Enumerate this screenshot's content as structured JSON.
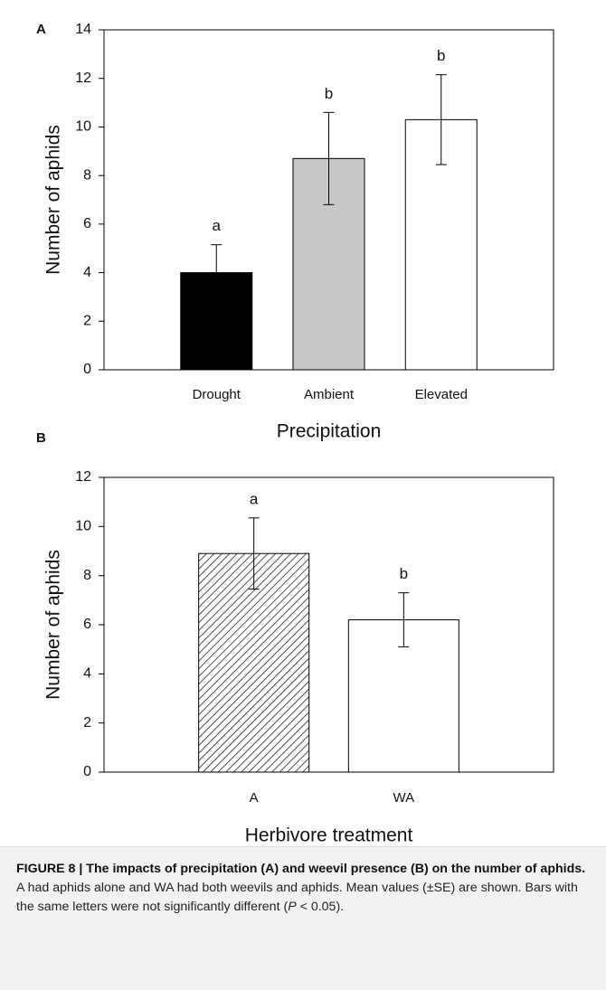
{
  "chart_data": [
    {
      "type": "bar",
      "panel_label": "A",
      "ylabel": "Number of aphids",
      "xlabel": "Precipitation",
      "categories": [
        "Drought",
        "Ambient",
        "Elevated"
      ],
      "values": [
        4.0,
        8.7,
        10.3
      ],
      "errors": [
        1.15,
        1.9,
        1.85
      ],
      "annotations": [
        "a",
        "b",
        "b"
      ],
      "colors": [
        "#000000",
        "#c8c8c8",
        "#ffffff"
      ],
      "bar_styles": [
        "solid",
        "solid",
        "solid"
      ],
      "ylim": [
        0,
        14
      ],
      "yticks": [
        0,
        2,
        4,
        6,
        8,
        10,
        12,
        14
      ]
    },
    {
      "type": "bar",
      "panel_label": "B",
      "ylabel": "Number of aphids",
      "xlabel": "Herbivore treatment",
      "categories": [
        "A",
        "WA"
      ],
      "values": [
        8.9,
        6.2
      ],
      "errors": [
        1.45,
        1.1
      ],
      "annotations": [
        "a",
        "b"
      ],
      "colors": [
        "#ffffff",
        "#ffffff"
      ],
      "bar_styles": [
        "hatched",
        "solid"
      ],
      "ylim": [
        0,
        12
      ],
      "yticks": [
        0,
        2,
        4,
        6,
        8,
        10,
        12
      ]
    }
  ],
  "caption": {
    "title": "FIGURE 8 | The impacts of precipitation (A) and weevil presence (B) on the number of aphids.",
    "text": " A had aphids alone and WA had both weevils and aphids. Mean values (±SE) are shown. Bars with the same letters were not significantly different (",
    "italic": "P",
    "end": " < 0.05)."
  }
}
